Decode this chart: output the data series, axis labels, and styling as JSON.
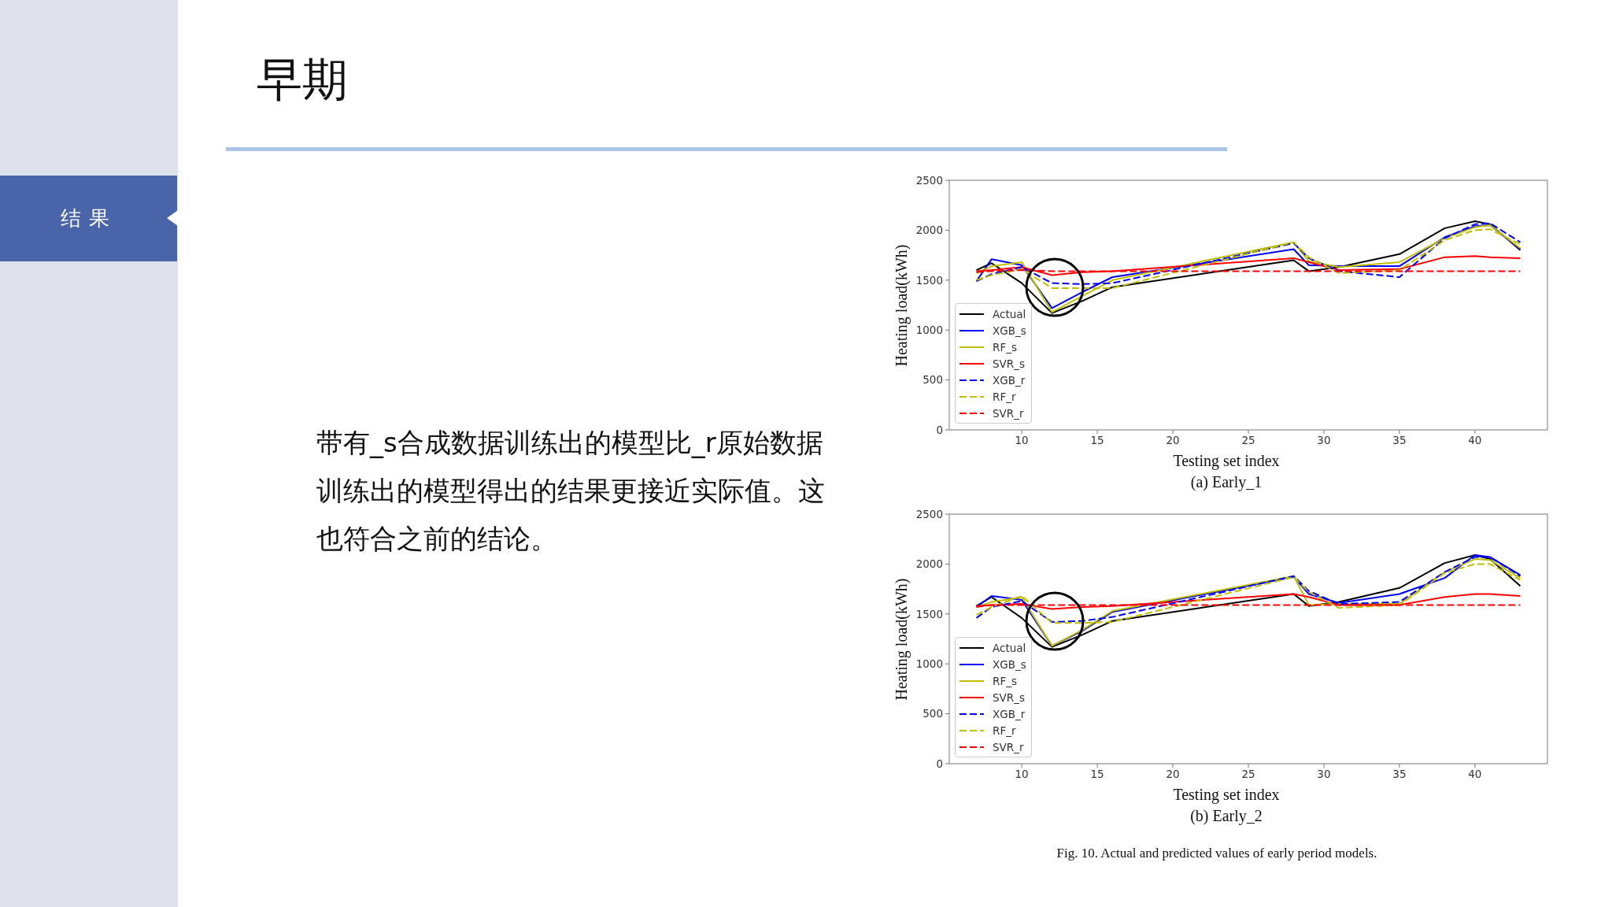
{
  "chart_data": [
    {
      "type": "other",
      "title": "早期",
      "annotations": [
        "结果",
        "带有_s合成数据训练出的模型比_r原始数据训练出的模型得出的结果更接近实际值。这也符合之前的结论。"
      ]
    },
    {
      "type": "line",
      "title": "(a) Early_1",
      "xlabel": "Testing set index",
      "ylabel": "Heating load(kWh)",
      "x": [
        7,
        8,
        10,
        12,
        14,
        16,
        28,
        29,
        31,
        35,
        38,
        40,
        41,
        43
      ],
      "xlim": [
        5.2,
        44.8
      ],
      "xticks": [
        10,
        15,
        20,
        25,
        30,
        35,
        40
      ],
      "ylim": [
        0,
        2500
      ],
      "yticks": [
        0,
        500,
        1000,
        1500,
        2000,
        2500
      ],
      "legend": "bottom left",
      "series": [
        {
          "name": "Actual",
          "color": "#000000",
          "line_style": "solid",
          "values": [
            1600,
            1670,
            1470,
            1170,
            1290,
            1430,
            1700,
            1590,
            1630,
            1760,
            2020,
            2090,
            2060,
            1800
          ]
        },
        {
          "name": "XGB_s",
          "color": "#0000ff",
          "line_style": "solid",
          "values": [
            1490,
            1710,
            1650,
            1220,
            1380,
            1530,
            1810,
            1650,
            1640,
            1640,
            1930,
            2040,
            2050,
            1810
          ]
        },
        {
          "name": "RF_s",
          "color": "#bfbf00",
          "line_style": "solid",
          "values": [
            1570,
            1640,
            1680,
            1180,
            1340,
            1500,
            1880,
            1690,
            1630,
            1680,
            1920,
            2030,
            2050,
            1820
          ]
        },
        {
          "name": "SVR_s",
          "color": "#ff0000",
          "line_style": "solid",
          "values": [
            1590,
            1600,
            1630,
            1550,
            1580,
            1590,
            1720,
            1680,
            1600,
            1610,
            1730,
            1740,
            1730,
            1720
          ]
        },
        {
          "name": "XGB_r",
          "color": "#0000ff",
          "line_style": "dashed",
          "values": [
            1490,
            1560,
            1630,
            1470,
            1460,
            1470,
            1870,
            1720,
            1590,
            1530,
            1920,
            2060,
            2070,
            1880
          ]
        },
        {
          "name": "RF_r",
          "color": "#bfbf00",
          "line_style": "dashed",
          "values": [
            1500,
            1550,
            1610,
            1420,
            1420,
            1420,
            1880,
            1730,
            1570,
            1600,
            1900,
            2000,
            2010,
            1860
          ]
        },
        {
          "name": "SVR_r",
          "color": "#ff0000",
          "line_style": "dashed",
          "values": [
            1580,
            1590,
            1600,
            1590,
            1590,
            1590,
            1590,
            1590,
            1590,
            1590,
            1590,
            1590,
            1590,
            1590
          ]
        }
      ]
    },
    {
      "type": "line",
      "title": "(b) Early_2",
      "xlabel": "Testing set index",
      "ylabel": "Heating load(kWh)",
      "x": [
        7,
        8,
        10,
        12,
        14,
        16,
        28,
        29,
        31,
        35,
        38,
        40,
        41,
        43
      ],
      "xlim": [
        5.2,
        44.8
      ],
      "xticks": [
        10,
        15,
        20,
        25,
        30,
        35,
        40
      ],
      "ylim": [
        0,
        2500
      ],
      "yticks": [
        0,
        500,
        1000,
        1500,
        2000,
        2500
      ],
      "legend": "bottom left",
      "annotations": [
        "Fig. 10. Actual and predicted values of early period models."
      ],
      "series": [
        {
          "name": "Actual",
          "color": "#000000",
          "line_style": "solid",
          "values": [
            1580,
            1670,
            1460,
            1170,
            1290,
            1430,
            1700,
            1580,
            1620,
            1760,
            2010,
            2090,
            2050,
            1780
          ]
        },
        {
          "name": "XGB_s",
          "color": "#0000ff",
          "line_style": "solid",
          "values": [
            1570,
            1680,
            1640,
            1180,
            1330,
            1520,
            1870,
            1700,
            1610,
            1700,
            1860,
            2090,
            2070,
            1890
          ]
        },
        {
          "name": "RF_s",
          "color": "#bfbf00",
          "line_style": "solid",
          "values": [
            1570,
            1620,
            1670,
            1180,
            1340,
            1530,
            1880,
            1590,
            1600,
            1600,
            1920,
            2050,
            2040,
            1860
          ]
        },
        {
          "name": "SVR_s",
          "color": "#ff0000",
          "line_style": "solid",
          "values": [
            1580,
            1590,
            1600,
            1550,
            1570,
            1580,
            1700,
            1670,
            1590,
            1590,
            1670,
            1700,
            1700,
            1680
          ]
        },
        {
          "name": "XGB_r",
          "color": "#0000ff",
          "line_style": "dashed",
          "values": [
            1460,
            1570,
            1630,
            1420,
            1430,
            1470,
            1880,
            1730,
            1600,
            1620,
            1920,
            2070,
            2070,
            1880
          ]
        },
        {
          "name": "RF_r",
          "color": "#bfbf00",
          "line_style": "dashed",
          "values": [
            1490,
            1570,
            1680,
            1410,
            1410,
            1420,
            1870,
            1720,
            1560,
            1590,
            1910,
            2000,
            2000,
            1840
          ]
        },
        {
          "name": "SVR_r",
          "color": "#ff0000",
          "line_style": "dashed",
          "values": [
            1570,
            1590,
            1590,
            1590,
            1590,
            1590,
            1590,
            1590,
            1590,
            1590,
            1590,
            1590,
            1590,
            1590
          ]
        }
      ]
    }
  ]
}
